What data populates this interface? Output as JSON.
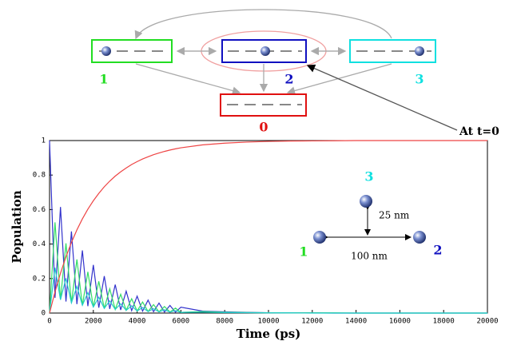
{
  "diagram": {
    "nodes": [
      {
        "label": "1",
        "color": "#22dd22"
      },
      {
        "label": "2",
        "color": "#1010c0"
      },
      {
        "label": "3",
        "color": "#10e0e0"
      },
      {
        "label": "0",
        "color": "#e01010"
      }
    ],
    "annotation": "At t=0"
  },
  "chart_data": {
    "type": "line",
    "xlabel": "Time (ps)",
    "ylabel": "Population",
    "xlim": [
      0,
      20000
    ],
    "ylim": [
      0,
      1
    ],
    "xticks": [
      0,
      2000,
      4000,
      6000,
      8000,
      10000,
      12000,
      14000,
      16000,
      18000,
      20000
    ],
    "yticks": [
      0,
      0.2,
      0.4,
      0.6,
      0.8,
      1
    ],
    "x": [
      0,
      250,
      500,
      750,
      1000,
      1250,
      1500,
      1750,
      2000,
      2250,
      2500,
      2750,
      3000,
      3250,
      3500,
      3750,
      4000,
      4250,
      4500,
      4750,
      5000,
      5250,
      5500,
      5750,
      6000,
      7000,
      8000,
      9000,
      10000,
      11000,
      12000,
      13000,
      14000,
      15000,
      16000,
      17000,
      18000,
      19000,
      20000
    ],
    "series": [
      {
        "color": "#3333cc",
        "values": [
          1,
          0.088,
          0.615,
          0.067,
          0.473,
          0.052,
          0.363,
          0.04,
          0.279,
          0.031,
          0.214,
          0.024,
          0.165,
          0.018,
          0.127,
          0.014,
          0.098,
          0.011,
          0.075,
          0.008,
          0.058,
          0.006,
          0.044,
          0.005,
          0.034,
          0.011,
          0.007,
          0.004,
          0.002,
          0.001,
          0.001,
          0,
          0,
          0,
          0,
          0,
          0,
          0,
          0
        ]
      },
      {
        "color": "#33dd66",
        "values": [
          0,
          0.526,
          0.077,
          0.404,
          0.059,
          0.311,
          0.045,
          0.239,
          0.035,
          0.184,
          0.027,
          0.141,
          0.021,
          0.109,
          0.016,
          0.083,
          0.012,
          0.064,
          0.009,
          0.049,
          0.007,
          0.038,
          0.006,
          0.029,
          0.004,
          0.009,
          0.005,
          0.003,
          0.002,
          0.001,
          0.001,
          0.001,
          0,
          0,
          0,
          0,
          0,
          0,
          0
        ]
      },
      {
        "color": "#22cccc",
        "values": [
          0,
          0.263,
          0.077,
          0.202,
          0.059,
          0.155,
          0.045,
          0.119,
          0.035,
          0.092,
          0.027,
          0.071,
          0.021,
          0.054,
          0.016,
          0.042,
          0.012,
          0.032,
          0.009,
          0.025,
          0.007,
          0.019,
          0.006,
          0.014,
          0.004,
          0.005,
          0.003,
          0.002,
          0.001,
          0.001,
          0,
          0,
          0,
          0,
          0,
          0,
          0,
          0,
          0
        ]
      },
      {
        "color": "#ee4444",
        "values": [
          0,
          0.123,
          0.231,
          0.326,
          0.409,
          0.482,
          0.546,
          0.602,
          0.651,
          0.694,
          0.732,
          0.765,
          0.794,
          0.819,
          0.841,
          0.861,
          0.878,
          0.893,
          0.906,
          0.918,
          0.928,
          0.937,
          0.945,
          0.952,
          0.958,
          0.975,
          0.985,
          0.991,
          0.995,
          0.997,
          0.998,
          0.999,
          1,
          1,
          1,
          1,
          1,
          1,
          1
        ]
      }
    ],
    "annotations": [
      {
        "text": "3",
        "color": "#10e0e0"
      },
      {
        "text": "25 nm"
      },
      {
        "text": "1",
        "color": "#22dd22"
      },
      {
        "text": "100 nm"
      },
      {
        "text": "2",
        "color": "#1010c0"
      }
    ]
  }
}
